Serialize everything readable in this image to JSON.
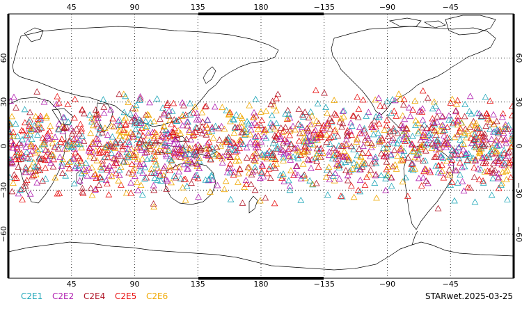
{
  "map": {
    "projection": "equirectangular",
    "lon_range": [
      0,
      360
    ],
    "lat_range": [
      -90,
      90
    ],
    "top_lon_labels": [
      "45",
      "90",
      "135",
      "180",
      "−135",
      "−90",
      "−45"
    ],
    "bottom_lon_labels": [
      "45",
      "90",
      "135",
      "180",
      "−135",
      "−90",
      "−45"
    ],
    "left_lat_labels": [
      "60",
      "30",
      "0",
      "−30",
      "−60"
    ],
    "right_lat_labels": [
      "60",
      "30",
      "0",
      "−30",
      "−60"
    ],
    "grid": "dotted",
    "marker_shape": "open-triangle",
    "observation_band_lat": [
      -45,
      45
    ]
  },
  "legend": {
    "items": [
      {
        "label": "C2E1",
        "color": "#1fa6b8"
      },
      {
        "label": "C2E2",
        "color": "#b01fb0"
      },
      {
        "label": "C2E4",
        "color": "#b0182a"
      },
      {
        "label": "C2E5",
        "color": "#e81010"
      },
      {
        "label": "C2E6",
        "color": "#f0a800"
      }
    ]
  },
  "stamp": {
    "text": "STARwet.2025-03-25"
  }
}
